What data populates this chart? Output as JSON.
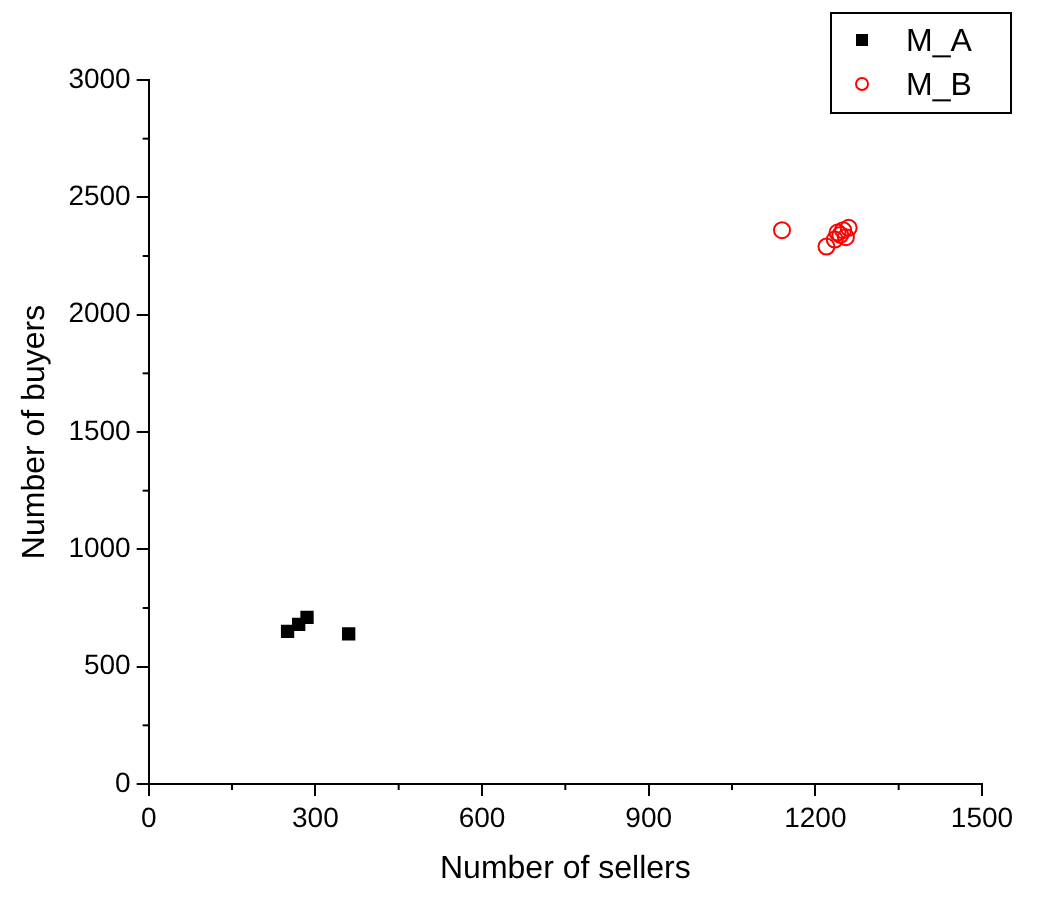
{
  "chart_data": {
    "type": "scatter",
    "xlabel": "Number of sellers",
    "ylabel": "Number of buyers",
    "xlim": [
      0,
      1500
    ],
    "xticks": [
      0,
      300,
      600,
      900,
      1200,
      1500
    ],
    "ylim": [
      0,
      3000
    ],
    "yticks": [
      0,
      500,
      1000,
      1500,
      2000,
      2500,
      3000
    ],
    "grid": false,
    "legend": "top right",
    "series": [
      {
        "name": "M_A",
        "color": "#000000",
        "marker": "square",
        "x": [
          250,
          270,
          285,
          360
        ],
        "values": [
          650,
          680,
          710,
          640
        ]
      },
      {
        "name": "M_B",
        "color": "#ff0000",
        "marker": "circle",
        "x": [
          1140,
          1220,
          1235,
          1240,
          1245,
          1250,
          1255,
          1260
        ],
        "values": [
          2360,
          2290,
          2320,
          2350,
          2340,
          2360,
          2330,
          2370
        ]
      }
    ]
  }
}
